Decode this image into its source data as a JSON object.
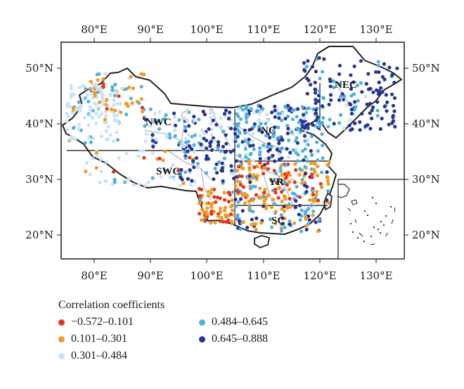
{
  "figure": {
    "top_lon_labels": [
      "80°E",
      "90°E",
      "100°E",
      "110°E",
      "120°E",
      "130°E"
    ],
    "bottom_lon_labels": [
      "80°E",
      "90°E",
      "100°E",
      "110°E",
      "120°E",
      "130°E"
    ],
    "left_lat_labels": [
      "50°N",
      "40°N",
      "30°N",
      "20°N"
    ],
    "right_lat_labels": [
      "50°N",
      "40°N",
      "30°N",
      "20°N"
    ],
    "regions": [
      "NEC",
      "NC",
      "NWC",
      "SWC",
      "YR",
      "SC"
    ]
  },
  "legend": {
    "title": "Correlation coefficients",
    "items": [
      {
        "label": "−0.572–0.101",
        "color": "#e8341c"
      },
      {
        "label": "0.484–0.645",
        "color": "#52b0de"
      },
      {
        "label": "0.101–0.301",
        "color": "#f39a22"
      },
      {
        "label": "0.645–0.888",
        "color": "#27348f"
      },
      {
        "label": "0.301–0.484",
        "color": "#c9e3f3"
      }
    ]
  },
  "colors": {
    "frame": "#1a1a1a",
    "boundary": "#222222",
    "province_line": "#8c8c8c"
  }
}
